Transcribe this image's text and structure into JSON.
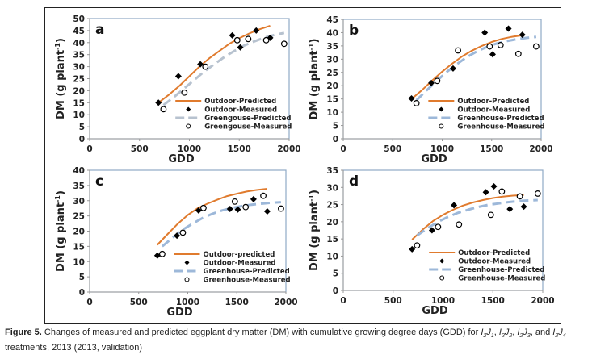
{
  "caption": {
    "label": "Figure 5.",
    "text_before": " Changes of measured and predicted eggplant dry matter (DM) with cumulative growing degree days (GDD) for ",
    "treatments": [
      {
        "I": "I",
        "i_sub": "2",
        "J": "J",
        "j_sub": "1"
      },
      {
        "I": "I",
        "i_sub": "2",
        "J": "J",
        "j_sub": "2"
      },
      {
        "I": "I",
        "i_sub": "2",
        "J": "J",
        "j_sub": "3"
      },
      {
        "I": "I",
        "i_sub": "2",
        "J": "J",
        "j_sub": "4"
      }
    ],
    "sep1": ", ",
    "sep2": ", ",
    "sep3": ", and ",
    "text_after": " treatments, 2013 (2013, validation)"
  },
  "colors": {
    "outdoor_predicted": "#E07B2E",
    "greenhouse_predicted": "#9DB8D9",
    "greengouse_predicted_a": "#B7C2CF",
    "axis_frame": "#8FA9C6",
    "marker": "#000000"
  },
  "chart_data": [
    {
      "panel": "a",
      "type": "scatter",
      "xlabel": "GDD",
      "ylabel": "DM (g plant-1)",
      "ylabel_main": "DM (g plant",
      "ylabel_sup": "-1",
      "ylabel_end": ")",
      "xlim": [
        0,
        2000
      ],
      "ylim": [
        0,
        50
      ],
      "xticks": [
        0,
        500,
        1000,
        1500,
        2000
      ],
      "yticks": [
        0,
        5,
        10,
        15,
        20,
        25,
        30,
        35,
        40,
        45,
        50
      ],
      "grid": false,
      "legend_position": "bottom-right",
      "series": [
        {
          "name": "Outdoor-Predicted",
          "kind": "line",
          "style": "solid",
          "x": [
            690,
            800,
            900,
            1000,
            1100,
            1200,
            1300,
            1400,
            1500,
            1600,
            1700,
            1810
          ],
          "y": [
            15,
            18.5,
            22,
            26,
            30,
            33.5,
            36.5,
            39.5,
            41.8,
            43.8,
            45.5,
            47
          ]
        },
        {
          "name": "Outdoor-Measured",
          "kind": "marker",
          "marker": "diamond",
          "x": [
            690,
            890,
            1110,
            1430,
            1510,
            1670,
            1810
          ],
          "y": [
            15,
            26,
            31,
            43,
            38,
            45,
            42
          ]
        },
        {
          "name": "Greengouse-Predicted",
          "kind": "line",
          "style": "dashed",
          "x": [
            740,
            850,
            950,
            1050,
            1150,
            1250,
            1350,
            1450,
            1550,
            1650,
            1750,
            1850,
            1950
          ],
          "y": [
            14,
            17.5,
            21,
            24.5,
            28,
            31,
            34,
            36.5,
            38.8,
            40.5,
            42,
            43.2,
            44
          ]
        },
        {
          "name": "Greengouse-Measured",
          "kind": "marker",
          "marker": "circle",
          "x": [
            740,
            950,
            1160,
            1480,
            1590,
            1770,
            1950
          ],
          "y": [
            12.3,
            19.2,
            30,
            41,
            41.5,
            41,
            39.5
          ]
        }
      ]
    },
    {
      "panel": "b",
      "type": "scatter",
      "xlabel": "GDD",
      "ylabel": "DM (g plant-1)",
      "ylabel_main": "DM (g plant",
      "ylabel_sup": "-1",
      "ylabel_end": ")",
      "xlim": [
        0,
        2000
      ],
      "ylim": [
        0,
        45
      ],
      "xticks": [
        0,
        500,
        1000,
        1500,
        2000
      ],
      "yticks": [
        0,
        5,
        10,
        15,
        20,
        25,
        30,
        35,
        40,
        45
      ],
      "grid": false,
      "legend_position": "bottom-right",
      "series": [
        {
          "name": "Outdoor-Predicted",
          "kind": "line",
          "style": "solid",
          "x": [
            690,
            800,
            900,
            1000,
            1100,
            1200,
            1300,
            1400,
            1500,
            1600,
            1700,
            1810
          ],
          "y": [
            15,
            18.5,
            22,
            25.3,
            28.3,
            31,
            33.2,
            35,
            36.5,
            37.6,
            38.4,
            39
          ]
        },
        {
          "name": "Outdoor-Measured",
          "kind": "marker",
          "marker": "diamond",
          "x": [
            690,
            890,
            1110,
            1430,
            1510,
            1670,
            1810
          ],
          "y": [
            15.2,
            21,
            26.5,
            40,
            31.8,
            41.5,
            39.2
          ]
        },
        {
          "name": "Greenhouse-Predicted",
          "kind": "line",
          "style": "dashed",
          "x": [
            740,
            850,
            950,
            1050,
            1150,
            1250,
            1350,
            1450,
            1550,
            1650,
            1750,
            1850,
            1950
          ],
          "y": [
            14.5,
            18.5,
            22,
            25.3,
            28.2,
            30.8,
            32.9,
            34.6,
            35.9,
            36.8,
            37.5,
            38,
            38.4
          ]
        },
        {
          "name": "Greenhouse-Measured",
          "kind": "marker",
          "marker": "circle",
          "x": [
            740,
            950,
            1160,
            1480,
            1590,
            1770,
            1950
          ],
          "y": [
            13.4,
            21.8,
            33.3,
            34.8,
            35.3,
            32,
            34.8
          ]
        }
      ]
    },
    {
      "panel": "c",
      "type": "scatter",
      "xlabel": "GDD",
      "ylabel": "DM (g plant-1)",
      "ylabel_main": "DM (g plant",
      "ylabel_sup": "-1",
      "ylabel_end": ")",
      "xlim": [
        0,
        2000
      ],
      "ylim": [
        0,
        40
      ],
      "xticks": [
        0,
        500,
        1000,
        1500,
        2000
      ],
      "yticks": [
        0,
        5,
        10,
        15,
        20,
        25,
        30,
        35,
        40
      ],
      "grid": false,
      "legend_position": "bottom-right",
      "series": [
        {
          "name": "Outdoor-predicted",
          "kind": "line",
          "style": "solid",
          "x": [
            690,
            800,
            900,
            1000,
            1100,
            1200,
            1300,
            1400,
            1500,
            1600,
            1700,
            1810
          ],
          "y": [
            15.5,
            19.2,
            22.5,
            25.3,
            27.5,
            29,
            30.3,
            31.5,
            32.3,
            33,
            33.5,
            33.9
          ]
        },
        {
          "name": "Outdoor-Measured",
          "kind": "marker",
          "marker": "diamond",
          "x": [
            690,
            890,
            1110,
            1430,
            1510,
            1670,
            1810
          ],
          "y": [
            12,
            18.5,
            26.8,
            27.3,
            27.1,
            30.5,
            26.5
          ]
        },
        {
          "name": "Greenhouse-Predicted",
          "kind": "line",
          "style": "dashed",
          "x": [
            740,
            850,
            950,
            1050,
            1150,
            1250,
            1350,
            1450,
            1550,
            1650,
            1750,
            1850,
            1950
          ],
          "y": [
            15,
            18,
            20.5,
            22.5,
            24.3,
            25.7,
            26.8,
            27.6,
            28.2,
            28.7,
            29,
            29.3,
            29.5
          ]
        },
        {
          "name": "Greenhouse-Measured",
          "kind": "marker",
          "marker": "circle",
          "x": [
            740,
            950,
            1160,
            1480,
            1590,
            1770,
            1950
          ],
          "y": [
            12.5,
            19.5,
            27.6,
            29.7,
            27.9,
            31.6,
            27.4
          ]
        }
      ]
    },
    {
      "panel": "d",
      "type": "scatter",
      "xlabel": "GDD",
      "ylabel": "DM (g plant-1)",
      "ylabel_main": "DM (g plant",
      "ylabel_sup": "-1",
      "ylabel_end": ")",
      "xlim": [
        0,
        2000
      ],
      "ylim": [
        0,
        35
      ],
      "xticks": [
        0,
        500,
        1000,
        1500,
        2000
      ],
      "yticks": [
        0,
        5,
        10,
        15,
        20,
        25,
        30,
        35
      ],
      "grid": false,
      "legend_position": "bottom-right",
      "series": [
        {
          "name": "Outdoor-Predicted",
          "kind": "line",
          "style": "solid",
          "x": [
            690,
            800,
            900,
            1000,
            1100,
            1200,
            1300,
            1400,
            1500,
            1600,
            1700,
            1810
          ],
          "y": [
            14.8,
            17.8,
            20.2,
            22,
            23.5,
            24.7,
            25.6,
            26.3,
            26.9,
            27.3,
            27.6,
            27.8
          ]
        },
        {
          "name": "Outdoor-Measured",
          "kind": "marker",
          "marker": "diamond",
          "x": [
            690,
            890,
            1110,
            1430,
            1510,
            1670,
            1810
          ],
          "y": [
            12,
            17.5,
            24.8,
            28.6,
            30.3,
            23.7,
            24.4
          ]
        },
        {
          "name": "Greenhouse-Predicted",
          "kind": "line",
          "style": "dashed",
          "x": [
            740,
            850,
            950,
            1050,
            1150,
            1250,
            1350,
            1450,
            1550,
            1650,
            1750,
            1850,
            1950
          ],
          "y": [
            16,
            18.2,
            20,
            21.4,
            22.6,
            23.5,
            24.3,
            24.9,
            25.3,
            25.7,
            26,
            26.2,
            26.3
          ]
        },
        {
          "name": "Greenhouse-Measured",
          "kind": "marker",
          "marker": "circle",
          "x": [
            740,
            950,
            1160,
            1480,
            1590,
            1770,
            1950
          ],
          "y": [
            13.1,
            18.5,
            19.2,
            22,
            28.8,
            27.4,
            28.2
          ]
        }
      ]
    }
  ]
}
